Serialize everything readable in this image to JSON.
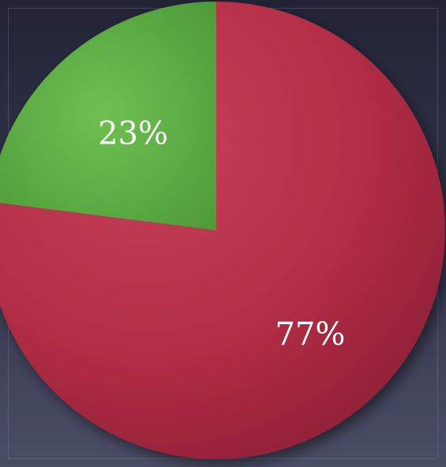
{
  "chart_data": {
    "type": "pie",
    "slices": [
      {
        "label": "77%",
        "value": 77,
        "color": "#b22d45"
      },
      {
        "label": "23%",
        "value": 23,
        "color": "#5fb044"
      }
    ]
  }
}
